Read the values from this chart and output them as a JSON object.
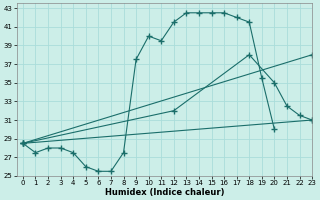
{
  "xlabel": "Humidex (Indice chaleur)",
  "bg_color": "#cceee8",
  "grid_color": "#aaddda",
  "line_color": "#1a6e6a",
  "xlim": [
    -0.5,
    23
  ],
  "ylim": [
    25,
    43.5
  ],
  "yticks": [
    25,
    27,
    29,
    31,
    33,
    35,
    37,
    39,
    41,
    43
  ],
  "xticks": [
    0,
    1,
    2,
    3,
    4,
    5,
    6,
    7,
    8,
    9,
    10,
    11,
    12,
    13,
    14,
    15,
    16,
    17,
    18,
    19,
    20,
    21,
    22,
    23
  ],
  "series": [
    {
      "x": [
        0,
        1,
        2,
        3,
        4,
        5,
        6,
        7,
        8,
        9,
        10,
        11,
        12,
        13,
        14,
        15,
        16,
        17,
        18,
        19,
        20
      ],
      "y": [
        28.5,
        27.5,
        28,
        28,
        27.5,
        26,
        25.5,
        25.5,
        27.5,
        37.5,
        40,
        39.5,
        41.5,
        42.5,
        42.5,
        42.5,
        42.5,
        42,
        41.5,
        35.5,
        30
      ]
    },
    {
      "x": [
        0,
        23
      ],
      "y": [
        28.5,
        31
      ]
    },
    {
      "x": [
        0,
        12,
        18,
        20,
        21,
        22,
        23
      ],
      "y": [
        28.5,
        32,
        38,
        35,
        32.5,
        31.5,
        31
      ]
    },
    {
      "x": [
        0,
        23
      ],
      "y": [
        28.5,
        38
      ]
    }
  ]
}
